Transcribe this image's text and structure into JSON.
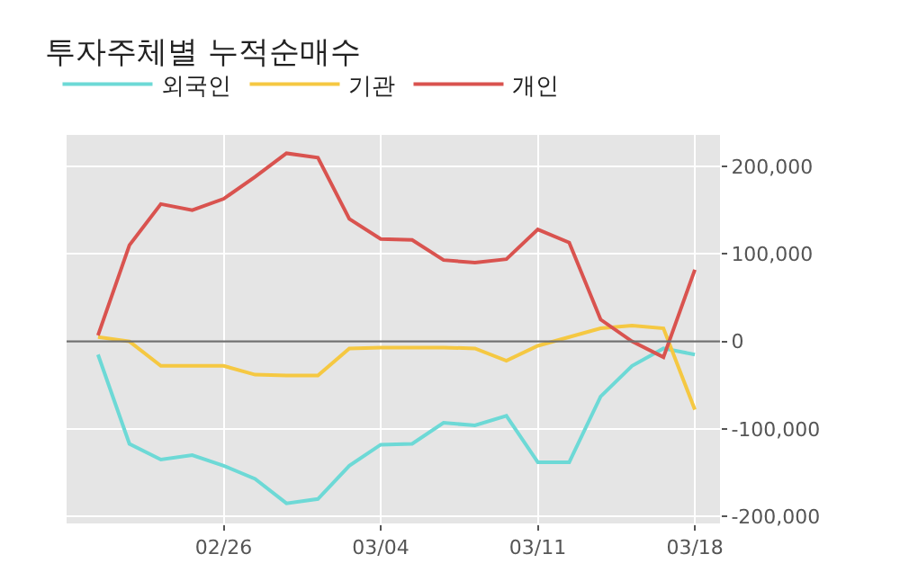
{
  "chart_data": {
    "type": "line",
    "title": "투자주체별 누적순매수",
    "categories": [
      null,
      null,
      null,
      null,
      "02/26",
      null,
      null,
      null,
      null,
      "03/04",
      null,
      null,
      null,
      null,
      "03/11",
      null,
      null,
      null,
      null,
      "03/18"
    ],
    "series": [
      {
        "name": "외국인",
        "color": "#6dd9d6",
        "values": [
          -15000,
          -117000,
          -135000,
          -130000,
          -142000,
          -157000,
          -185000,
          -180000,
          -142000,
          -118000,
          -117000,
          -93000,
          -96000,
          -85000,
          -138000,
          -138000,
          -63000,
          -28000,
          -8000,
          -15000
        ]
      },
      {
        "name": "기관",
        "color": "#f5c842",
        "values": [
          5000,
          0,
          -28000,
          -28000,
          -28000,
          -38000,
          -39000,
          -39000,
          -8000,
          -7000,
          -7000,
          -7000,
          -8000,
          -22000,
          -5000,
          5000,
          15000,
          18000,
          15000,
          -78000
        ]
      },
      {
        "name": "개인",
        "color": "#d9534f",
        "values": [
          7000,
          110000,
          157000,
          150000,
          163000,
          188000,
          215000,
          210000,
          140000,
          117000,
          116000,
          93000,
          90000,
          94000,
          128000,
          113000,
          25000,
          0,
          -18000,
          82000
        ]
      }
    ],
    "ylim": [
      -208000,
      236000
    ],
    "yticks": [
      {
        "value": -200000,
        "label": "-200,000"
      },
      {
        "value": -100000,
        "label": "-100,000"
      },
      0,
      {
        "value": 100000,
        "label": "100,000"
      },
      {
        "value": 200000,
        "label": "200,000"
      }
    ],
    "ref_lines": [
      {
        "axis": "y",
        "value": 0,
        "color": "#707070"
      }
    ],
    "grid": true,
    "legend": "top left",
    "marker": "none",
    "line_style": "solid"
  }
}
